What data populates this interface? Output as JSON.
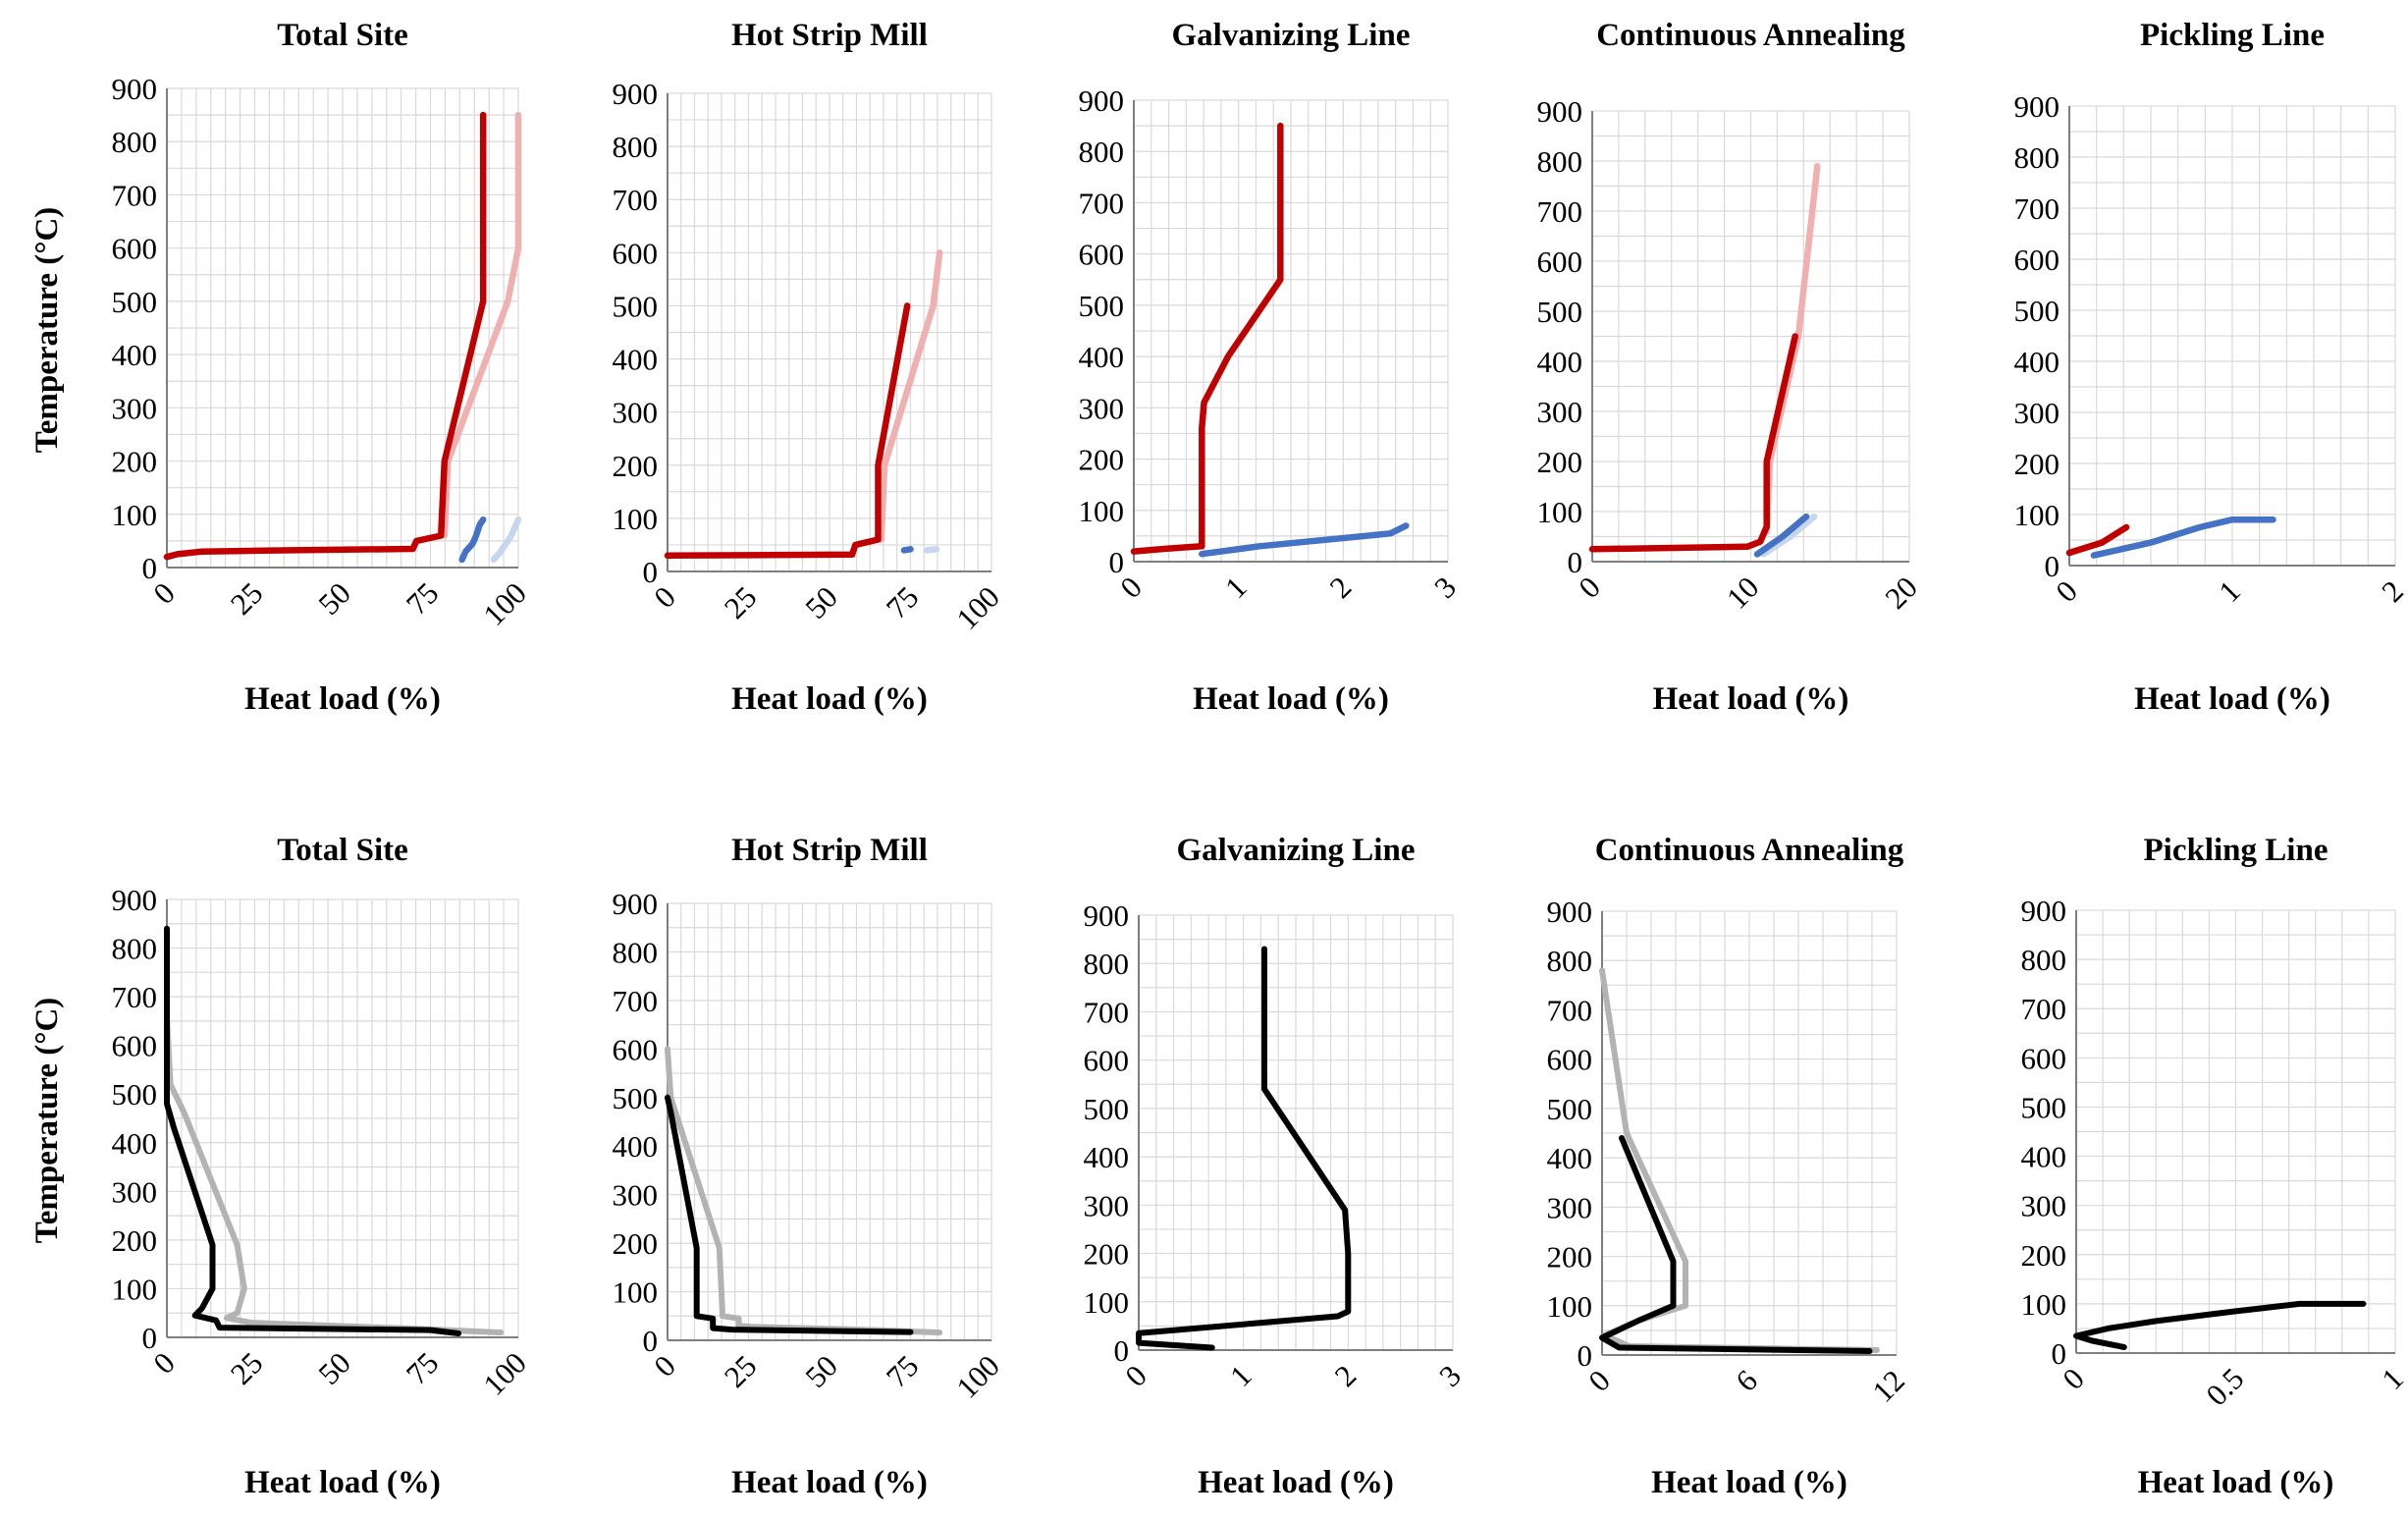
{
  "figure": {
    "colors": {
      "hot_composite": "#c00000",
      "hot_composite_light": "#f0b0b0",
      "cold_composite": "#4472c4",
      "cold_composite_light": "#c6d6ee",
      "grand_composite": "#000000",
      "grand_composite_light": "#b3b3b3",
      "grid": "#d9d9d9"
    }
  },
  "chart_data": [
    {
      "type": "line",
      "row": 0,
      "col": 0,
      "title": "Total Site",
      "xlabel": "Heat load (%)",
      "ylabel": "Temperature (°C)",
      "xlim": [
        0,
        100
      ],
      "ylim": [
        0,
        900
      ],
      "xticks": [
        "0",
        "25",
        "50",
        "75",
        "100"
      ],
      "yticks": [
        "0",
        "100",
        "200",
        "300",
        "400",
        "500",
        "600",
        "700",
        "800",
        "900"
      ],
      "grid": true,
      "series": [
        {
          "role": "hot_composite_light",
          "points": [
            [
              79,
              60
            ],
            [
              80,
              200
            ],
            [
              97,
              500
            ],
            [
              100,
              600
            ],
            [
              100,
              850
            ]
          ]
        },
        {
          "role": "cold_composite_light",
          "points": [
            [
              93,
              15
            ],
            [
              95,
              30
            ],
            [
              98,
              60
            ],
            [
              100,
              90
            ]
          ]
        },
        {
          "role": "hot_composite",
          "points": [
            [
              0,
              20
            ],
            [
              3,
              25
            ],
            [
              10,
              30
            ],
            [
              30,
              32
            ],
            [
              70,
              35
            ],
            [
              71,
              50
            ],
            [
              78,
              60
            ],
            [
              79,
              200
            ],
            [
              90,
              500
            ],
            [
              90,
              850
            ]
          ]
        },
        {
          "role": "cold_composite",
          "points": [
            [
              84,
              15
            ],
            [
              85,
              30
            ],
            [
              87,
              45
            ],
            [
              88,
              60
            ],
            [
              89,
              80
            ],
            [
              90,
              90
            ]
          ]
        }
      ]
    },
    {
      "type": "line",
      "row": 0,
      "col": 1,
      "title": "Hot Strip Mill",
      "xlabel": "Heat load (%)",
      "ylabel": "",
      "xlim": [
        0,
        100
      ],
      "ylim": [
        0,
        900
      ],
      "xticks": [
        "0",
        "25",
        "50",
        "75",
        "100"
      ],
      "yticks": [
        "0",
        "100",
        "200",
        "300",
        "400",
        "500",
        "600",
        "700",
        "800",
        "900"
      ],
      "grid": true,
      "series": [
        {
          "role": "hot_composite_light",
          "points": [
            [
              66,
              60
            ],
            [
              67,
              200
            ],
            [
              82,
              500
            ],
            [
              84,
              600
            ]
          ]
        },
        {
          "role": "cold_composite_light",
          "points": [
            [
              80,
              40
            ],
            [
              83,
              42
            ]
          ]
        },
        {
          "role": "hot_composite",
          "points": [
            [
              0,
              30
            ],
            [
              57,
              32
            ],
            [
              58,
              50
            ],
            [
              65,
              60
            ],
            [
              65,
              200
            ],
            [
              74,
              500
            ]
          ]
        },
        {
          "role": "cold_composite",
          "points": [
            [
              73,
              40
            ],
            [
              75,
              42
            ]
          ]
        }
      ]
    },
    {
      "type": "line",
      "row": 0,
      "col": 2,
      "title": "Galvanizing Line",
      "xlabel": "Heat load (%)",
      "ylabel": "",
      "xlim": [
        0,
        3
      ],
      "ylim": [
        0,
        900
      ],
      "xticks": [
        "0",
        "1",
        "2",
        "3"
      ],
      "yticks": [
        "0",
        "100",
        "200",
        "300",
        "400",
        "500",
        "600",
        "700",
        "800",
        "900"
      ],
      "grid": true,
      "series": [
        {
          "role": "hot_composite",
          "points": [
            [
              0,
              20
            ],
            [
              0.3,
              25
            ],
            [
              0.65,
              30
            ],
            [
              0.65,
              260
            ],
            [
              0.67,
              310
            ],
            [
              0.9,
              400
            ],
            [
              1.4,
              550
            ],
            [
              1.4,
              850
            ]
          ]
        },
        {
          "role": "cold_composite",
          "points": [
            [
              0.65,
              15
            ],
            [
              1.2,
              30
            ],
            [
              2.45,
              55
            ],
            [
              2.6,
              70
            ]
          ]
        }
      ]
    },
    {
      "type": "line",
      "row": 0,
      "col": 3,
      "title": "Continuous Annealing",
      "xlabel": "Heat load (%)",
      "ylabel": "",
      "xlim": [
        0,
        20
      ],
      "ylim": [
        0,
        900
      ],
      "xticks": [
        "0",
        "10",
        "20"
      ],
      "yticks": [
        "0",
        "100",
        "200",
        "300",
        "400",
        "500",
        "600",
        "700",
        "800",
        "900"
      ],
      "grid": true,
      "series": [
        {
          "role": "hot_composite_light",
          "points": [
            [
              11,
              60
            ],
            [
              11.2,
              200
            ],
            [
              13,
              450
            ],
            [
              14.2,
              790
            ]
          ]
        },
        {
          "role": "cold_composite_light",
          "points": [
            [
              10.8,
              15
            ],
            [
              12.5,
              50
            ],
            [
              14,
              90
            ]
          ]
        },
        {
          "role": "hot_composite",
          "points": [
            [
              0,
              25
            ],
            [
              9.8,
              30
            ],
            [
              10.6,
              40
            ],
            [
              11,
              70
            ],
            [
              11,
              200
            ],
            [
              12.8,
              450
            ]
          ]
        },
        {
          "role": "cold_composite",
          "points": [
            [
              10.4,
              15
            ],
            [
              12,
              50
            ],
            [
              13.5,
              90
            ]
          ]
        }
      ]
    },
    {
      "type": "line",
      "row": 0,
      "col": 4,
      "title": "Pickling Line",
      "xlabel": "Heat load (%)",
      "ylabel": "",
      "xlim": [
        0,
        2
      ],
      "ylim": [
        0,
        900
      ],
      "xticks": [
        "0",
        "1",
        "2"
      ],
      "yticks": [
        "0",
        "100",
        "200",
        "300",
        "400",
        "500",
        "600",
        "700",
        "800",
        "900"
      ],
      "grid": true,
      "series": [
        {
          "role": "hot_composite",
          "points": [
            [
              0,
              25
            ],
            [
              0.2,
              45
            ],
            [
              0.35,
              75
            ]
          ]
        },
        {
          "role": "cold_composite",
          "points": [
            [
              0.15,
              20
            ],
            [
              0.5,
              45
            ],
            [
              0.8,
              75
            ],
            [
              1.0,
              90
            ],
            [
              1.25,
              90
            ]
          ]
        }
      ]
    },
    {
      "type": "line",
      "row": 1,
      "col": 0,
      "title": "Total Site",
      "xlabel": "Heat load (%)",
      "ylabel": "Temperature (°C)",
      "xlim": [
        0,
        100
      ],
      "ylim": [
        0,
        900
      ],
      "xticks": [
        "0",
        "25",
        "50",
        "75",
        "100"
      ],
      "yticks": [
        "0",
        "100",
        "200",
        "300",
        "400",
        "500",
        "600",
        "700",
        "800",
        "900"
      ],
      "grid": true,
      "series": [
        {
          "role": "grand_composite_light",
          "points": [
            [
              0,
              660
            ],
            [
              1,
              520
            ],
            [
              5,
              460
            ],
            [
              20,
              190
            ],
            [
              22,
              100
            ],
            [
              20,
              50
            ],
            [
              17,
              40
            ],
            [
              24,
              30
            ],
            [
              70,
              18
            ],
            [
              95,
              10
            ]
          ]
        },
        {
          "role": "grand_composite",
          "points": [
            [
              0,
              840
            ],
            [
              0,
              480
            ],
            [
              2,
              430
            ],
            [
              13,
              190
            ],
            [
              13,
              100
            ],
            [
              10,
              60
            ],
            [
              8,
              45
            ],
            [
              14,
              35
            ],
            [
              15,
              20
            ],
            [
              75,
              15
            ],
            [
              83,
              8
            ]
          ]
        }
      ]
    },
    {
      "type": "line",
      "row": 1,
      "col": 1,
      "title": "Hot Strip Mill",
      "xlabel": "Heat load (%)",
      "ylabel": "",
      "xlim": [
        0,
        100
      ],
      "ylim": [
        0,
        900
      ],
      "xticks": [
        "0",
        "25",
        "50",
        "75",
        "100"
      ],
      "yticks": [
        "0",
        "100",
        "200",
        "300",
        "400",
        "500",
        "600",
        "700",
        "800",
        "900"
      ],
      "grid": true,
      "series": [
        {
          "role": "grand_composite_light",
          "points": [
            [
              0,
              600
            ],
            [
              1,
              500
            ],
            [
              16,
              190
            ],
            [
              17,
              50
            ],
            [
              22,
              45
            ],
            [
              22,
              30
            ],
            [
              26,
              28
            ],
            [
              60,
              22
            ],
            [
              84,
              16
            ]
          ]
        },
        {
          "role": "grand_composite",
          "points": [
            [
              0,
              500
            ],
            [
              1,
              470
            ],
            [
              9,
              190
            ],
            [
              9,
              50
            ],
            [
              14,
              45
            ],
            [
              14,
              25
            ],
            [
              20,
              22
            ],
            [
              75,
              17
            ]
          ]
        }
      ]
    },
    {
      "type": "line",
      "row": 1,
      "col": 2,
      "title": "Galvanizing Line",
      "xlabel": "Heat load (%)",
      "ylabel": "",
      "xlim": [
        0,
        3
      ],
      "ylim": [
        0,
        900
      ],
      "xticks": [
        "0",
        "1",
        "2",
        "3"
      ],
      "yticks": [
        "0",
        "100",
        "200",
        "300",
        "400",
        "500",
        "600",
        "700",
        "800",
        "900"
      ],
      "grid": true,
      "series": [
        {
          "role": "grand_composite",
          "points": [
            [
              1.2,
              830
            ],
            [
              1.2,
              540
            ],
            [
              1.6,
              410
            ],
            [
              1.97,
              290
            ],
            [
              2.0,
              200
            ],
            [
              2.0,
              80
            ],
            [
              1.9,
              70
            ],
            [
              0,
              35
            ],
            [
              0,
              15
            ],
            [
              0.7,
              5
            ]
          ]
        }
      ]
    },
    {
      "type": "line",
      "row": 1,
      "col": 3,
      "title": "Continuous Annealing",
      "xlabel": "Heat load (%)",
      "ylabel": "",
      "xlim": [
        0,
        12
      ],
      "ylim": [
        0,
        900
      ],
      "xticks": [
        "0",
        "6",
        "12"
      ],
      "yticks": [
        "0",
        "100",
        "200",
        "300",
        "400",
        "500",
        "600",
        "700",
        "800",
        "900"
      ],
      "grid": true,
      "series": [
        {
          "role": "grand_composite_light",
          "points": [
            [
              0,
              780
            ],
            [
              1,
              450
            ],
            [
              3.4,
              190
            ],
            [
              3.4,
              100
            ],
            [
              1.5,
              70
            ],
            [
              0.1,
              40
            ],
            [
              1.1,
              18
            ],
            [
              11.2,
              10
            ]
          ]
        },
        {
          "role": "grand_composite",
          "points": [
            [
              0.8,
              440
            ],
            [
              2.9,
              190
            ],
            [
              2.9,
              100
            ],
            [
              1.5,
              70
            ],
            [
              0,
              35
            ],
            [
              0.7,
              15
            ],
            [
              10.9,
              8
            ]
          ]
        }
      ]
    },
    {
      "type": "line",
      "row": 1,
      "col": 4,
      "title": "Pickling Line",
      "xlabel": "Heat load (%)",
      "ylabel": "",
      "xlim": [
        0,
        1
      ],
      "ylim": [
        0,
        900
      ],
      "xticks": [
        "0",
        "0.5",
        "1"
      ],
      "yticks": [
        "0",
        "100",
        "200",
        "300",
        "400",
        "500",
        "600",
        "700",
        "800",
        "900"
      ],
      "grid": true,
      "series": [
        {
          "role": "grand_composite",
          "points": [
            [
              0.15,
              12
            ],
            [
              0.05,
              25
            ],
            [
              0,
              35
            ],
            [
              0.1,
              50
            ],
            [
              0.25,
              65
            ],
            [
              0.5,
              85
            ],
            [
              0.7,
              100
            ],
            [
              0.9,
              100
            ]
          ]
        }
      ]
    }
  ]
}
